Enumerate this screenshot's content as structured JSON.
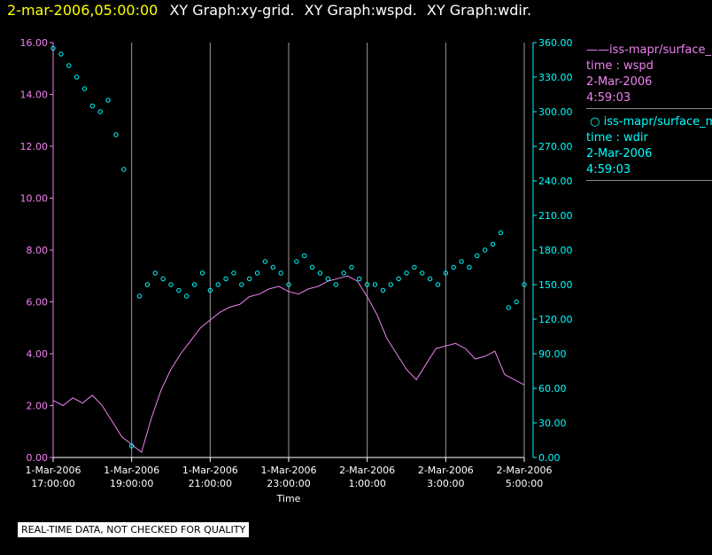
{
  "header": {
    "timestamp": "2-mar-2006,05:00:00",
    "titles": [
      "XY Graph:xy-grid.",
      "XY Graph:wspd.",
      "XY Graph:wdir."
    ]
  },
  "legend": {
    "wspd": {
      "series": "iss-mapr/surface_m",
      "var": "time : wspd",
      "date": "2-Mar-2006",
      "time": "4:59:03",
      "color": "#ee82ee"
    },
    "wdir": {
      "series": "iss-mapr/surface_m",
      "var": "time : wdir",
      "date": "2-Mar-2006",
      "time": "4:59:03",
      "color": "#00ffff"
    }
  },
  "disclaimer": "REAL-TIME DATA, NOT CHECKED FOR QUALITY",
  "chart_data": {
    "type": "line",
    "xlabel": "Time",
    "x_ticks": [
      {
        "date": "1-Mar-2006",
        "time": "17:00:00",
        "hour": 0
      },
      {
        "date": "1-Mar-2006",
        "time": "19:00:00",
        "hour": 2
      },
      {
        "date": "1-Mar-2006",
        "time": "21:00:00",
        "hour": 4
      },
      {
        "date": "1-Mar-2006",
        "time": "23:00:00",
        "hour": 6
      },
      {
        "date": "2-Mar-2006",
        "time": "1:00:00",
        "hour": 8
      },
      {
        "date": "2-Mar-2006",
        "time": "3:00:00",
        "hour": 10
      },
      {
        "date": "2-Mar-2006",
        "time": "5:00:00",
        "hour": 12
      }
    ],
    "xlim": [
      0,
      12
    ],
    "grid": "vertical",
    "y_left": {
      "ylim": [
        0,
        16
      ],
      "ticks": [
        "0.00",
        "2.00",
        "4.00",
        "6.00",
        "8.00",
        "10.00",
        "12.00",
        "14.00",
        "16.00"
      ],
      "color": "#ee82ee"
    },
    "y_right": {
      "ylim": [
        0,
        360
      ],
      "ticks": [
        "0.00",
        "30.00",
        "60.00",
        "90.00",
        "120.00",
        "150.00",
        "180.00",
        "210.00",
        "240.00",
        "270.00",
        "300.00",
        "330.00",
        "360.00"
      ],
      "color": "#00ffff"
    },
    "series": [
      {
        "name": "iss-mapr/surface_m time : wspd",
        "axis": "left",
        "style": "line",
        "color": "#ee82ee",
        "x": [
          0,
          0.25,
          0.5,
          0.75,
          1,
          1.25,
          1.5,
          1.75,
          2,
          2.25,
          2.5,
          2.75,
          3,
          3.25,
          3.5,
          3.75,
          4,
          4.25,
          4.5,
          4.75,
          5,
          5.25,
          5.5,
          5.75,
          6,
          6.25,
          6.5,
          6.75,
          7,
          7.25,
          7.5,
          7.75,
          8,
          8.25,
          8.5,
          8.75,
          9,
          9.25,
          9.5,
          9.75,
          10,
          10.25,
          10.5,
          10.75,
          11,
          11.25,
          11.5,
          11.75,
          12
        ],
        "values": [
          2.2,
          2.0,
          2.3,
          2.1,
          2.4,
          2.0,
          1.4,
          0.8,
          0.5,
          0.2,
          1.5,
          2.6,
          3.4,
          4.0,
          4.5,
          5.0,
          5.3,
          5.6,
          5.8,
          5.9,
          6.2,
          6.3,
          6.5,
          6.6,
          6.4,
          6.3,
          6.5,
          6.6,
          6.8,
          6.9,
          7.0,
          6.8,
          6.2,
          5.5,
          4.6,
          4.0,
          3.4,
          3.0,
          3.6,
          4.2,
          4.3,
          4.4,
          4.2,
          3.8,
          3.9,
          4.1,
          3.2,
          3.0,
          2.8
        ]
      },
      {
        "name": "iss-mapr/surface_m time : wdir",
        "axis": "right",
        "style": "markers",
        "color": "#00ffff",
        "x": [
          0,
          0.2,
          0.4,
          0.6,
          0.8,
          1,
          1.2,
          1.4,
          1.6,
          1.8,
          2,
          2.2,
          2.4,
          2.6,
          2.8,
          3,
          3.2,
          3.4,
          3.6,
          3.8,
          4,
          4.2,
          4.4,
          4.6,
          4.8,
          5,
          5.2,
          5.4,
          5.6,
          5.8,
          6,
          6.2,
          6.4,
          6.6,
          6.8,
          7,
          7.2,
          7.4,
          7.6,
          7.8,
          8,
          8.2,
          8.4,
          8.6,
          8.8,
          9,
          9.2,
          9.4,
          9.6,
          9.8,
          10,
          10.2,
          10.4,
          10.6,
          10.8,
          11,
          11.2,
          11.4,
          11.6,
          11.8,
          12
        ],
        "values": [
          355,
          350,
          340,
          330,
          320,
          305,
          300,
          310,
          280,
          250,
          10,
          140,
          150,
          160,
          155,
          150,
          145,
          140,
          150,
          160,
          145,
          150,
          155,
          160,
          150,
          155,
          160,
          170,
          165,
          160,
          150,
          170,
          175,
          165,
          160,
          155,
          150,
          160,
          165,
          155,
          150,
          150,
          145,
          150,
          155,
          160,
          165,
          160,
          155,
          150,
          160,
          165,
          170,
          165,
          175,
          180,
          185,
          195,
          130,
          135,
          150
        ]
      }
    ]
  }
}
